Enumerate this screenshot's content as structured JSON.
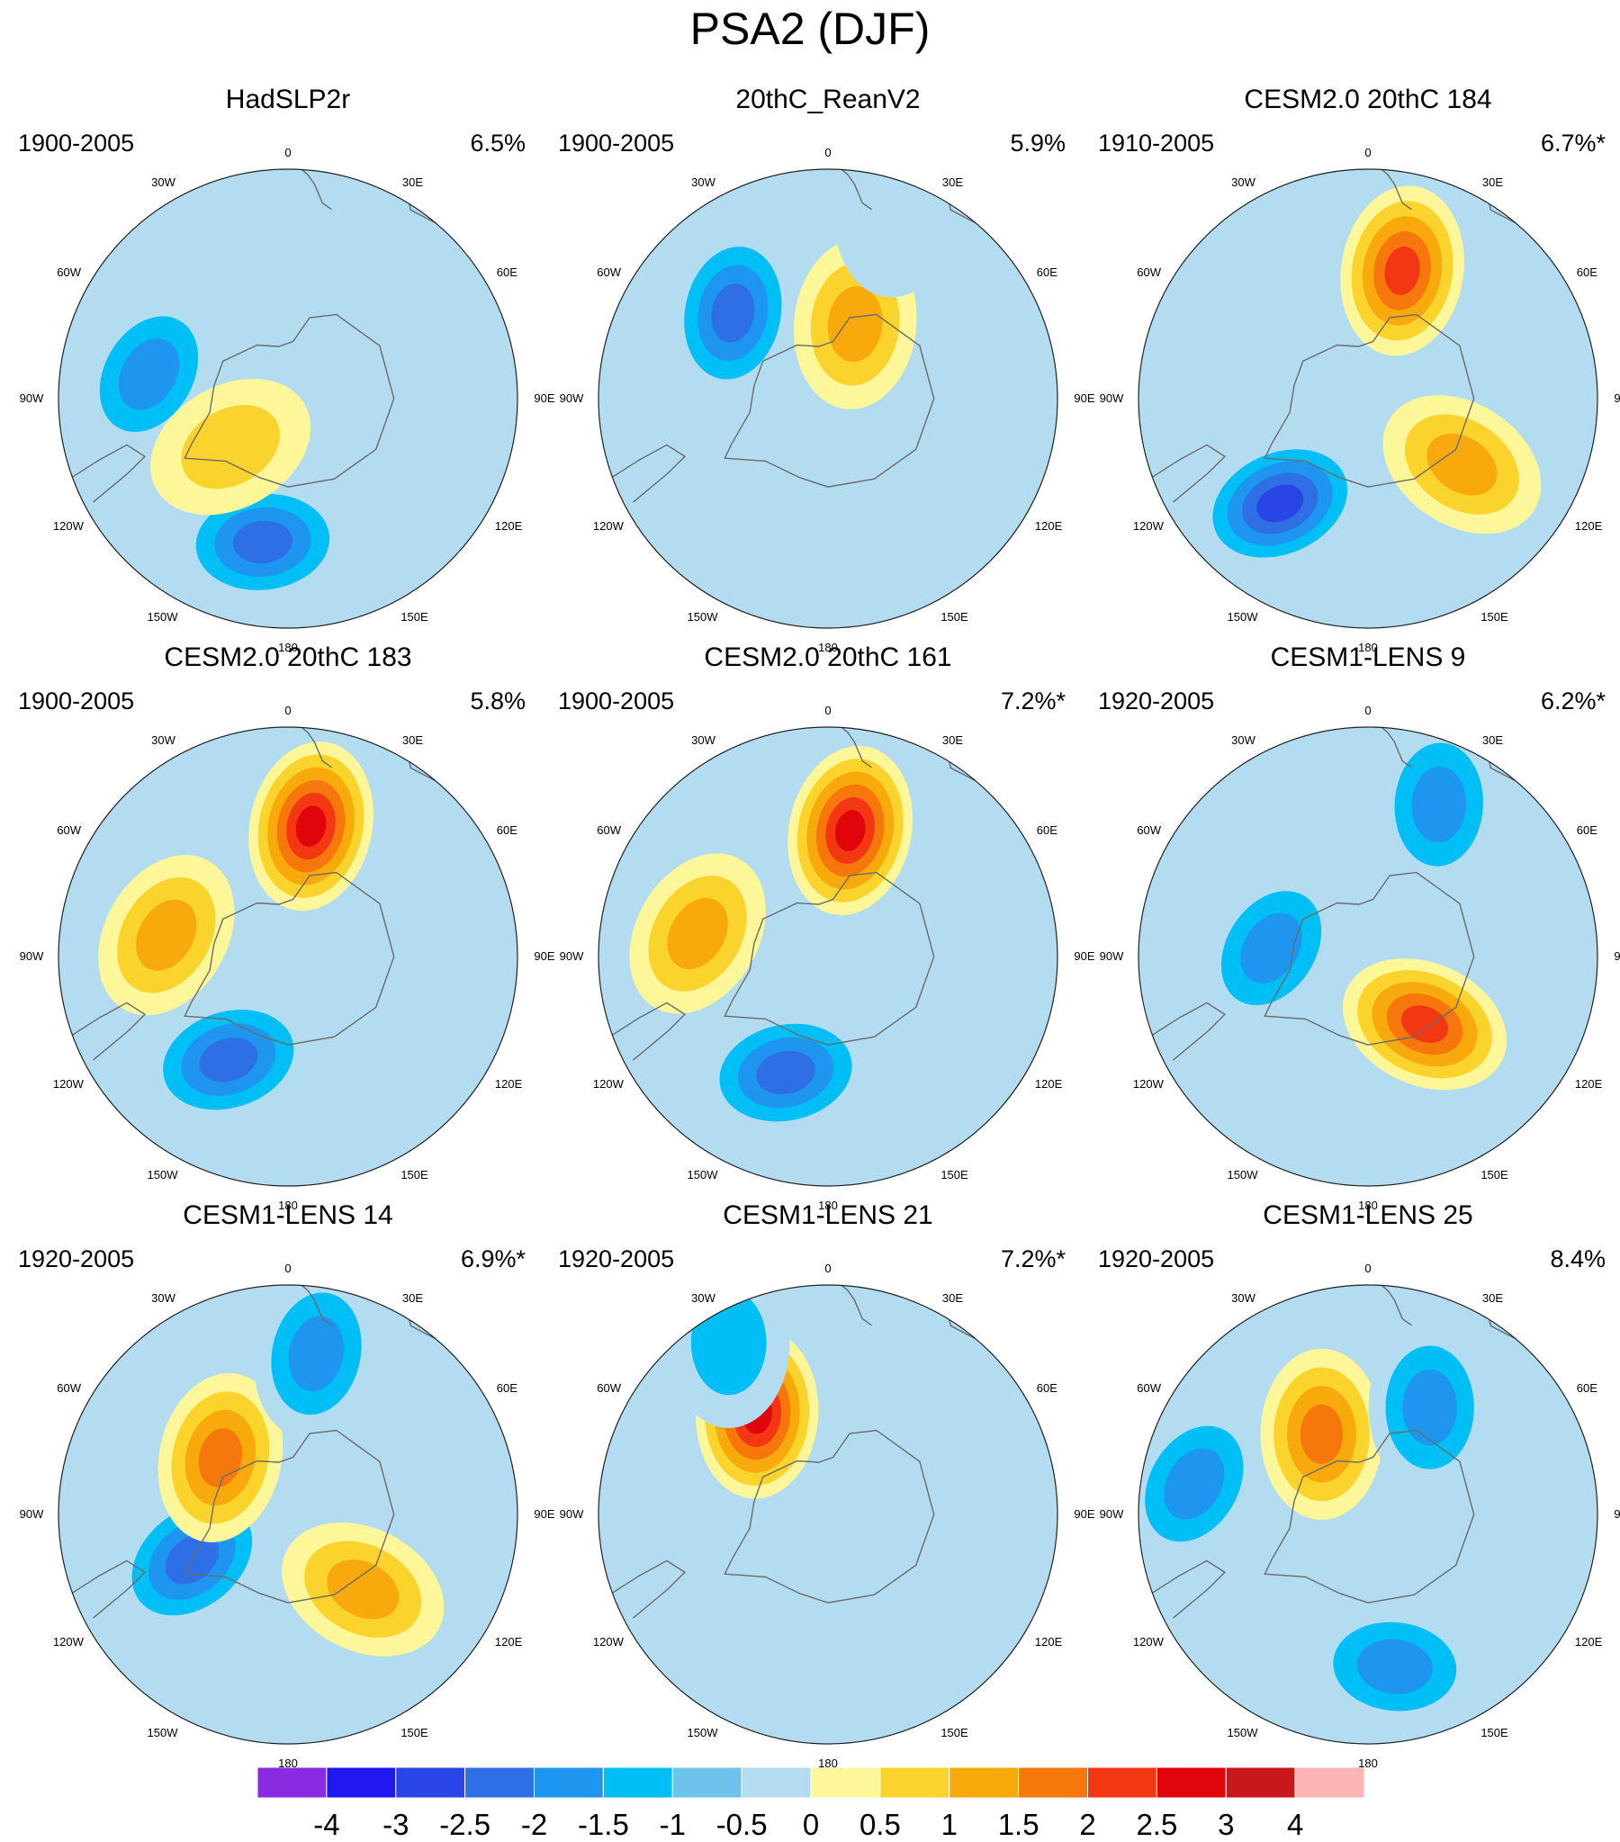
{
  "title": "PSA2 (DJF)",
  "meridian_labels": {
    "0": "0",
    "30E": "30E",
    "60E": "60E",
    "90E": "90E",
    "120E": "120E",
    "150E": "150E",
    "180": "180",
    "150W": "150W",
    "120W": "120W",
    "90W": "90W",
    "60W": "60W",
    "30W": "30W"
  },
  "panels": [
    {
      "title": "HadSLP2r",
      "period": "1900-2005",
      "variance": "6.5%"
    },
    {
      "title": "20thC_ReanV2",
      "period": "1900-2005",
      "variance": "5.9%"
    },
    {
      "title": "CESM2.0 20thC 184",
      "period": "1910-2005",
      "variance": "6.7%*"
    },
    {
      "title": "CESM2.0 20thC 183",
      "period": "1900-2005",
      "variance": "5.8%"
    },
    {
      "title": "CESM2.0 20thC 161",
      "period": "1900-2005",
      "variance": "7.2%*"
    },
    {
      "title": "CESM1-LENS 9",
      "period": "1920-2005",
      "variance": "6.2%*"
    },
    {
      "title": "CESM1-LENS 14",
      "period": "1920-2005",
      "variance": "6.9%*"
    },
    {
      "title": "CESM1-LENS 21",
      "period": "1920-2005",
      "variance": "7.2%*"
    },
    {
      "title": "CESM1-LENS 25",
      "period": "1920-2005",
      "variance": "8.4%"
    }
  ],
  "colorbar": {
    "tick_labels": [
      "-4",
      "-3",
      "-2.5",
      "-2",
      "-1.5",
      "-1",
      "-0.5",
      "0",
      "0.5",
      "1",
      "1.5",
      "2",
      "2.5",
      "3",
      "4"
    ],
    "colors": [
      "#8a2be2",
      "#1f18f0",
      "#2a45e6",
      "#2e6fe6",
      "#1e96f0",
      "#00bef6",
      "#6ec3ec",
      "#b3dcf0",
      "#fdf79a",
      "#fbd32d",
      "#f8aa0c",
      "#f6770c",
      "#f43713",
      "#e0050b",
      "#c8181c",
      "#fdb4b4"
    ]
  },
  "chart_data": {
    "type": "polar-stereographic contour maps (Southern Hemisphere)",
    "title": "PSA2 (DJF)",
    "field": "regression pattern anomaly",
    "contour_levels": [
      -4,
      -3,
      -2.5,
      -2,
      -1.5,
      -1,
      -0.5,
      0,
      0.5,
      1,
      1.5,
      2,
      2.5,
      3,
      4
    ],
    "panels": [
      {
        "name": "HadSLP2r",
        "variance_pct": 6.5,
        "significant": false,
        "anomalies": [
          {
            "lon": -10,
            "lat": -57,
            "value": -2.2
          },
          {
            "lon": -100,
            "lat": -58,
            "value": -1.9
          },
          {
            "lon": -50,
            "lat": -73,
            "value": 0.9
          }
        ]
      },
      {
        "name": "20thC_ReanV2",
        "variance_pct": 5.9,
        "significant": false,
        "anomalies": [
          {
            "lon": -132,
            "lat": -61,
            "value": -2.1
          },
          {
            "lon": 160,
            "lat": -72,
            "value": 1.2
          },
          {
            "lon": 160,
            "lat": -45,
            "value": -0.9
          }
        ]
      },
      {
        "name": "CESM2.0 20thC 184",
        "variance_pct": 6.7,
        "significant": true,
        "anomalies": [
          {
            "lon": -40,
            "lat": -59,
            "value": -2.7
          },
          {
            "lon": 165,
            "lat": -60,
            "value": 2.4
          },
          {
            "lon": 55,
            "lat": -64,
            "value": 1.2
          }
        ]
      },
      {
        "name": "CESM2.0 20thC 183",
        "variance_pct": 5.8,
        "significant": false,
        "anomalies": [
          {
            "lon": -30,
            "lat": -63,
            "value": -2.1
          },
          {
            "lon": 170,
            "lat": -60,
            "value": 2.5
          },
          {
            "lon": -100,
            "lat": -62,
            "value": 1.1
          }
        ]
      },
      {
        "name": "CESM2.0 20thC 161",
        "variance_pct": 7.2,
        "significant": true,
        "anomalies": [
          {
            "lon": -20,
            "lat": -62,
            "value": -2.0
          },
          {
            "lon": 170,
            "lat": -61,
            "value": 2.7
          },
          {
            "lon": -100,
            "lat": -60,
            "value": 1.2
          }
        ]
      },
      {
        "name": "CESM1-LENS 9",
        "variance_pct": 6.2,
        "significant": true,
        "anomalies": [
          {
            "lon": -95,
            "lat": -68,
            "value": -1.9
          },
          {
            "lon": 155,
            "lat": -52,
            "value": -1.8
          },
          {
            "lon": 40,
            "lat": -70,
            "value": 2.0
          }
        ]
      },
      {
        "name": "CESM1-LENS 14",
        "variance_pct": 6.9,
        "significant": true,
        "anomalies": [
          {
            "lon": -65,
            "lat": -66,
            "value": -2.1
          },
          {
            "lon": -130,
            "lat": -70,
            "value": 1.8
          },
          {
            "lon": 45,
            "lat": -66,
            "value": 1.3
          },
          {
            "lon": 170,
            "lat": -53,
            "value": -1.6
          }
        ]
      },
      {
        "name": "CESM1-LENS 21",
        "variance_pct": 7.2,
        "significant": true,
        "anomalies": [
          {
            "lon": -145,
            "lat": -62,
            "value": 2.9
          },
          {
            "lon": -150,
            "lat": -45,
            "value": -1.2
          }
        ]
      },
      {
        "name": "CESM1-LENS 25",
        "variance_pct": 8.4,
        "significant": false,
        "anomalies": [
          {
            "lon": -150,
            "lat": -69,
            "value": 1.9
          },
          {
            "lon": 10,
            "lat": -55,
            "value": -1.5
          },
          {
            "lon": -100,
            "lat": -50,
            "value": -1.6
          },
          {
            "lon": 150,
            "lat": -62,
            "value": -1.5
          }
        ]
      }
    ]
  }
}
